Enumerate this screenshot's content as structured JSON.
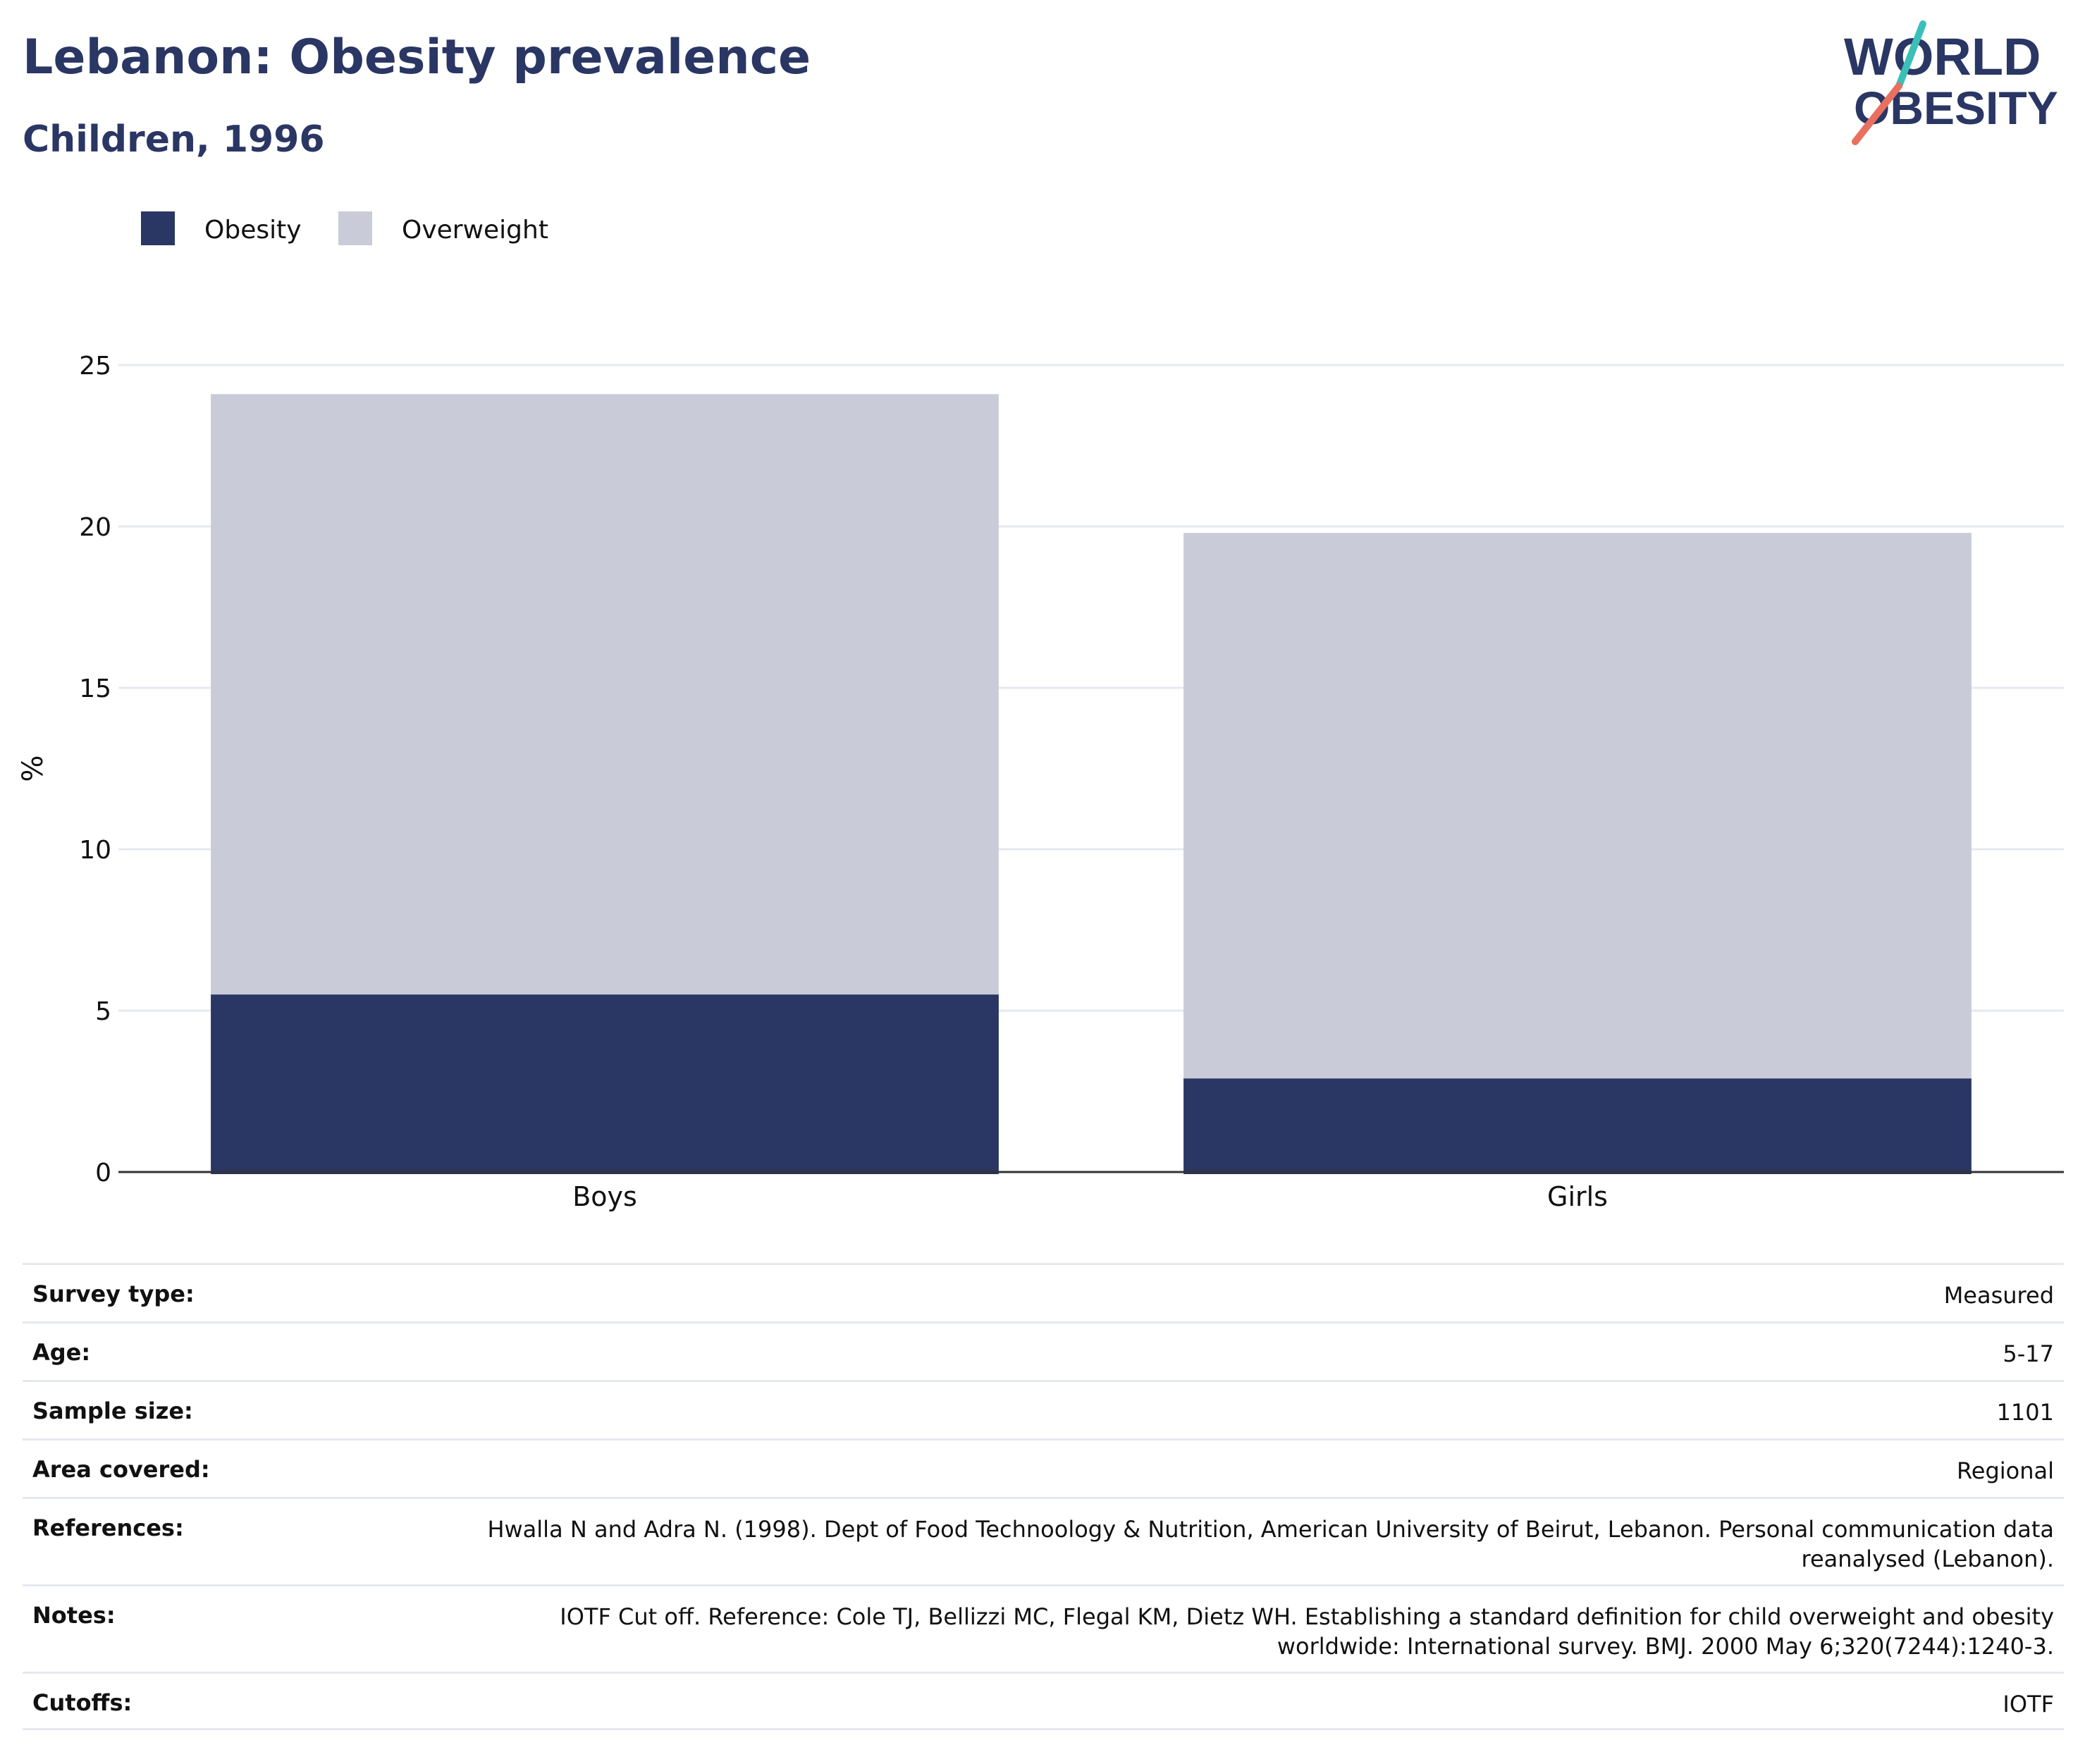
{
  "header": {
    "title": "Lebanon: Obesity prevalence",
    "subtitle": "Children, 1996"
  },
  "logo": {
    "line1": "WORLD",
    "line2": "OBESITY",
    "colors": {
      "text": "#2a3663",
      "slash_top": "#3bbfb9",
      "slash_bottom": "#e8705f"
    }
  },
  "colors": {
    "obesity": "#2a3663",
    "overweight": "#c9ccd8",
    "grid": "#e6e8ef",
    "axis": "#333333",
    "text": "#111111"
  },
  "chart_data": {
    "type": "bar",
    "stacked": true,
    "categories": [
      "Boys",
      "Girls"
    ],
    "series": [
      {
        "name": "Obesity",
        "values": [
          5.5,
          2.9
        ]
      },
      {
        "name": "Overweight",
        "values": [
          18.6,
          16.9
        ]
      }
    ],
    "totals": [
      24.1,
      19.8
    ],
    "ylabel": "%",
    "xlabel": "",
    "ylim": [
      0,
      25
    ],
    "yticks": [
      0,
      5,
      10,
      15,
      20,
      25
    ],
    "grid": true,
    "legend_position": "top-left"
  },
  "info": [
    {
      "label": "Survey type:",
      "value": "Measured"
    },
    {
      "label": "Age:",
      "value": "5-17"
    },
    {
      "label": "Sample size:",
      "value": "1101"
    },
    {
      "label": "Area covered:",
      "value": "Regional"
    },
    {
      "label": "References:",
      "value": "Hwalla N and Adra N. (1998). Dept of Food Technoology & Nutrition, American University of Beirut, Lebanon. Personal communication data reanalysed (Lebanon)."
    },
    {
      "label": "Notes:",
      "value": "IOTF Cut off. Reference: Cole TJ, Bellizzi MC, Flegal KM, Dietz WH. Establishing a standard definition for child overweight and obesity worldwide: International survey. BMJ. 2000 May 6;320(7244):1240-3."
    },
    {
      "label": "Cutoffs:",
      "value": "IOTF"
    }
  ]
}
